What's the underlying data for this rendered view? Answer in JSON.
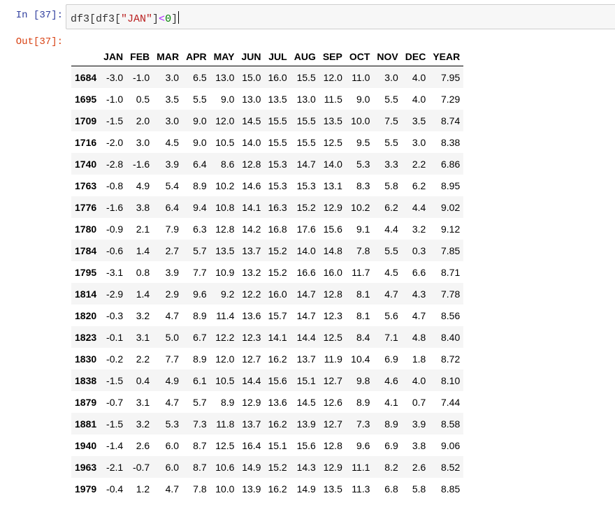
{
  "input_cell": {
    "prompt": "In  [37]:",
    "code_parts": {
      "a": "df3[df3[",
      "str": "\"JAN\"",
      "b": "]",
      "op": "<",
      "num": "0",
      "c": "]"
    }
  },
  "output_cell": {
    "prompt": "Out[37]:"
  },
  "table": {
    "columns": [
      "",
      "JAN",
      "FEB",
      "MAR",
      "APR",
      "MAY",
      "JUN",
      "JUL",
      "AUG",
      "SEP",
      "OCT",
      "NOV",
      "DEC",
      "YEAR"
    ],
    "rows": [
      [
        "1684",
        "-3.0",
        "-1.0",
        "3.0",
        "6.5",
        "13.0",
        "15.0",
        "16.0",
        "15.5",
        "12.0",
        "11.0",
        "3.0",
        "4.0",
        "7.95"
      ],
      [
        "1695",
        "-1.0",
        "0.5",
        "3.5",
        "5.5",
        "9.0",
        "13.0",
        "13.5",
        "13.0",
        "11.5",
        "9.0",
        "5.5",
        "4.0",
        "7.29"
      ],
      [
        "1709",
        "-1.5",
        "2.0",
        "3.0",
        "9.0",
        "12.0",
        "14.5",
        "15.5",
        "15.5",
        "13.5",
        "10.0",
        "7.5",
        "3.5",
        "8.74"
      ],
      [
        "1716",
        "-2.0",
        "3.0",
        "4.5",
        "9.0",
        "10.5",
        "14.0",
        "15.5",
        "15.5",
        "12.5",
        "9.5",
        "5.5",
        "3.0",
        "8.38"
      ],
      [
        "1740",
        "-2.8",
        "-1.6",
        "3.9",
        "6.4",
        "8.6",
        "12.8",
        "15.3",
        "14.7",
        "14.0",
        "5.3",
        "3.3",
        "2.2",
        "6.86"
      ],
      [
        "1763",
        "-0.8",
        "4.9",
        "5.4",
        "8.9",
        "10.2",
        "14.6",
        "15.3",
        "15.3",
        "13.1",
        "8.3",
        "5.8",
        "6.2",
        "8.95"
      ],
      [
        "1776",
        "-1.6",
        "3.8",
        "6.4",
        "9.4",
        "10.8",
        "14.1",
        "16.3",
        "15.2",
        "12.9",
        "10.2",
        "6.2",
        "4.4",
        "9.02"
      ],
      [
        "1780",
        "-0.9",
        "2.1",
        "7.9",
        "6.3",
        "12.8",
        "14.2",
        "16.8",
        "17.6",
        "15.6",
        "9.1",
        "4.4",
        "3.2",
        "9.12"
      ],
      [
        "1784",
        "-0.6",
        "1.4",
        "2.7",
        "5.7",
        "13.5",
        "13.7",
        "15.2",
        "14.0",
        "14.8",
        "7.8",
        "5.5",
        "0.3",
        "7.85"
      ],
      [
        "1795",
        "-3.1",
        "0.8",
        "3.9",
        "7.7",
        "10.9",
        "13.2",
        "15.2",
        "16.6",
        "16.0",
        "11.7",
        "4.5",
        "6.6",
        "8.71"
      ],
      [
        "1814",
        "-2.9",
        "1.4",
        "2.9",
        "9.6",
        "9.2",
        "12.2",
        "16.0",
        "14.7",
        "12.8",
        "8.1",
        "4.7",
        "4.3",
        "7.78"
      ],
      [
        "1820",
        "-0.3",
        "3.2",
        "4.7",
        "8.9",
        "11.4",
        "13.6",
        "15.7",
        "14.7",
        "12.3",
        "8.1",
        "5.6",
        "4.7",
        "8.56"
      ],
      [
        "1823",
        "-0.1",
        "3.1",
        "5.0",
        "6.7",
        "12.2",
        "12.3",
        "14.1",
        "14.4",
        "12.5",
        "8.4",
        "7.1",
        "4.8",
        "8.40"
      ],
      [
        "1830",
        "-0.2",
        "2.2",
        "7.7",
        "8.9",
        "12.0",
        "12.7",
        "16.2",
        "13.7",
        "11.9",
        "10.4",
        "6.9",
        "1.8",
        "8.72"
      ],
      [
        "1838",
        "-1.5",
        "0.4",
        "4.9",
        "6.1",
        "10.5",
        "14.4",
        "15.6",
        "15.1",
        "12.7",
        "9.8",
        "4.6",
        "4.0",
        "8.10"
      ],
      [
        "1879",
        "-0.7",
        "3.1",
        "4.7",
        "5.7",
        "8.9",
        "12.9",
        "13.6",
        "14.5",
        "12.6",
        "8.9",
        "4.1",
        "0.7",
        "7.44"
      ],
      [
        "1881",
        "-1.5",
        "3.2",
        "5.3",
        "7.3",
        "11.8",
        "13.7",
        "16.2",
        "13.9",
        "12.7",
        "7.3",
        "8.9",
        "3.9",
        "8.58"
      ],
      [
        "1940",
        "-1.4",
        "2.6",
        "6.0",
        "8.7",
        "12.5",
        "16.4",
        "15.1",
        "15.6",
        "12.8",
        "9.6",
        "6.9",
        "3.8",
        "9.06"
      ],
      [
        "1963",
        "-2.1",
        "-0.7",
        "6.0",
        "8.7",
        "10.6",
        "14.9",
        "15.2",
        "14.3",
        "12.9",
        "11.1",
        "8.2",
        "2.6",
        "8.52"
      ],
      [
        "1979",
        "-0.4",
        "1.2",
        "4.7",
        "7.8",
        "10.0",
        "13.9",
        "16.2",
        "14.9",
        "13.5",
        "11.3",
        "6.8",
        "5.8",
        "8.85"
      ]
    ]
  }
}
